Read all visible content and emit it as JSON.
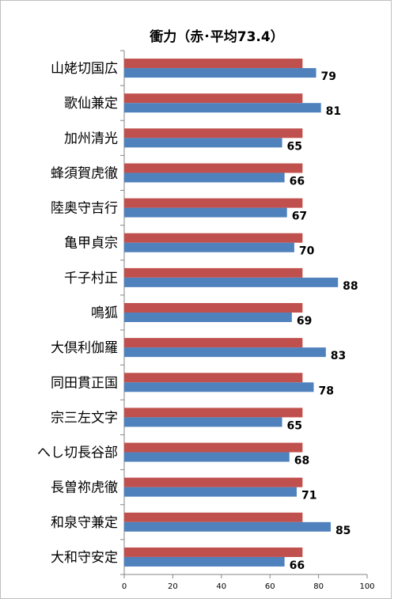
{
  "chart_data": {
    "type": "bar",
    "orientation": "horizontal",
    "title": "衝力（赤･平均73.4）",
    "xlabel": "",
    "ylabel": "",
    "xlim": [
      0,
      100
    ],
    "xticks": [
      0,
      20,
      40,
      60,
      80,
      100
    ],
    "grid": false,
    "legend": "none",
    "categories": [
      "山姥切国広",
      "歌仙兼定",
      "加州清光",
      "蜂須賀虎徹",
      "陸奥守吉行",
      "亀甲貞宗",
      "千子村正",
      "鳴狐",
      "大倶利伽羅",
      "同田貫正国",
      "宗三左文字",
      "へし切長谷部",
      "長曽祢虎徹",
      "和泉守兼定",
      "大和守安定"
    ],
    "series": [
      {
        "color": "#c0504d",
        "values": [
          73.4,
          73.4,
          73.4,
          73.4,
          73.4,
          73.4,
          73.4,
          73.4,
          73.4,
          73.4,
          73.4,
          73.4,
          73.4,
          73.4,
          73.4
        ],
        "show_labels": false
      },
      {
        "color": "#4f81bd",
        "values": [
          79,
          81,
          65,
          66,
          67,
          70,
          88,
          69,
          83,
          78,
          65,
          68,
          71,
          85,
          66
        ],
        "show_labels": true
      }
    ]
  }
}
